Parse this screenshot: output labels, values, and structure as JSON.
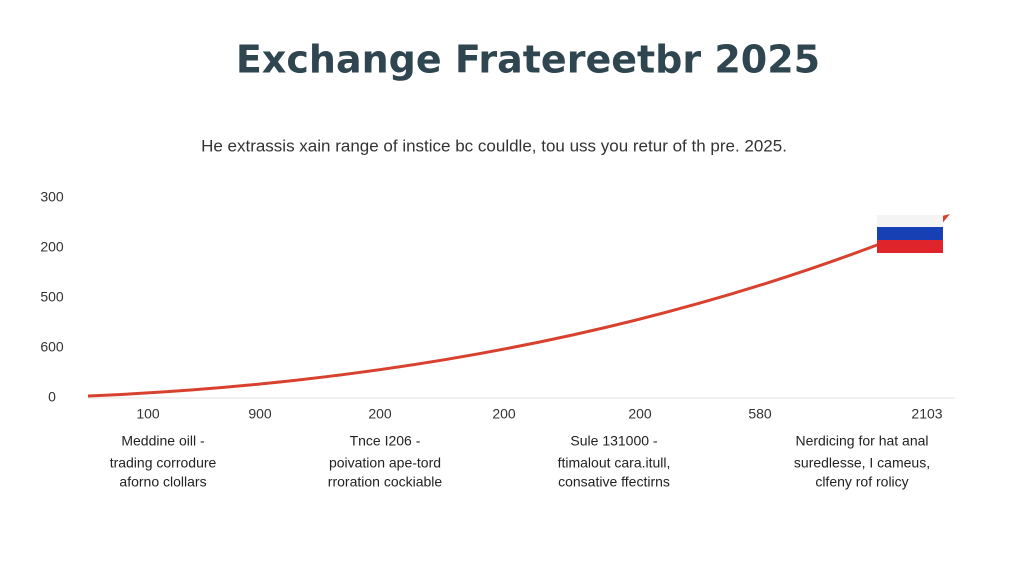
{
  "header": {
    "title": "Exchange Fratereetbr 2025",
    "subtitle": "He extrassis xain range of instice bc couldle, tou uss you retur of th pre. 2025."
  },
  "y_labels": [
    "300",
    "200",
    "500",
    "600",
    "0"
  ],
  "x_labels": [
    "100",
    "900",
    "200",
    "200",
    "200",
    "580",
    "2103"
  ],
  "notes": [
    [
      "Meddine oill -",
      "trading corrodure",
      "aforno clollars"
    ],
    [
      "Tnce I206 -",
      "poivation ape-tord",
      "rroration cockiable"
    ],
    [
      "Sule 131000 -",
      "ftimalout cara.itull,",
      "consative ffectirns"
    ],
    [
      "Nerdicing for hat anal",
      "suredlesse, I cameus,",
      "clfeny rof rolicy"
    ]
  ]
}
